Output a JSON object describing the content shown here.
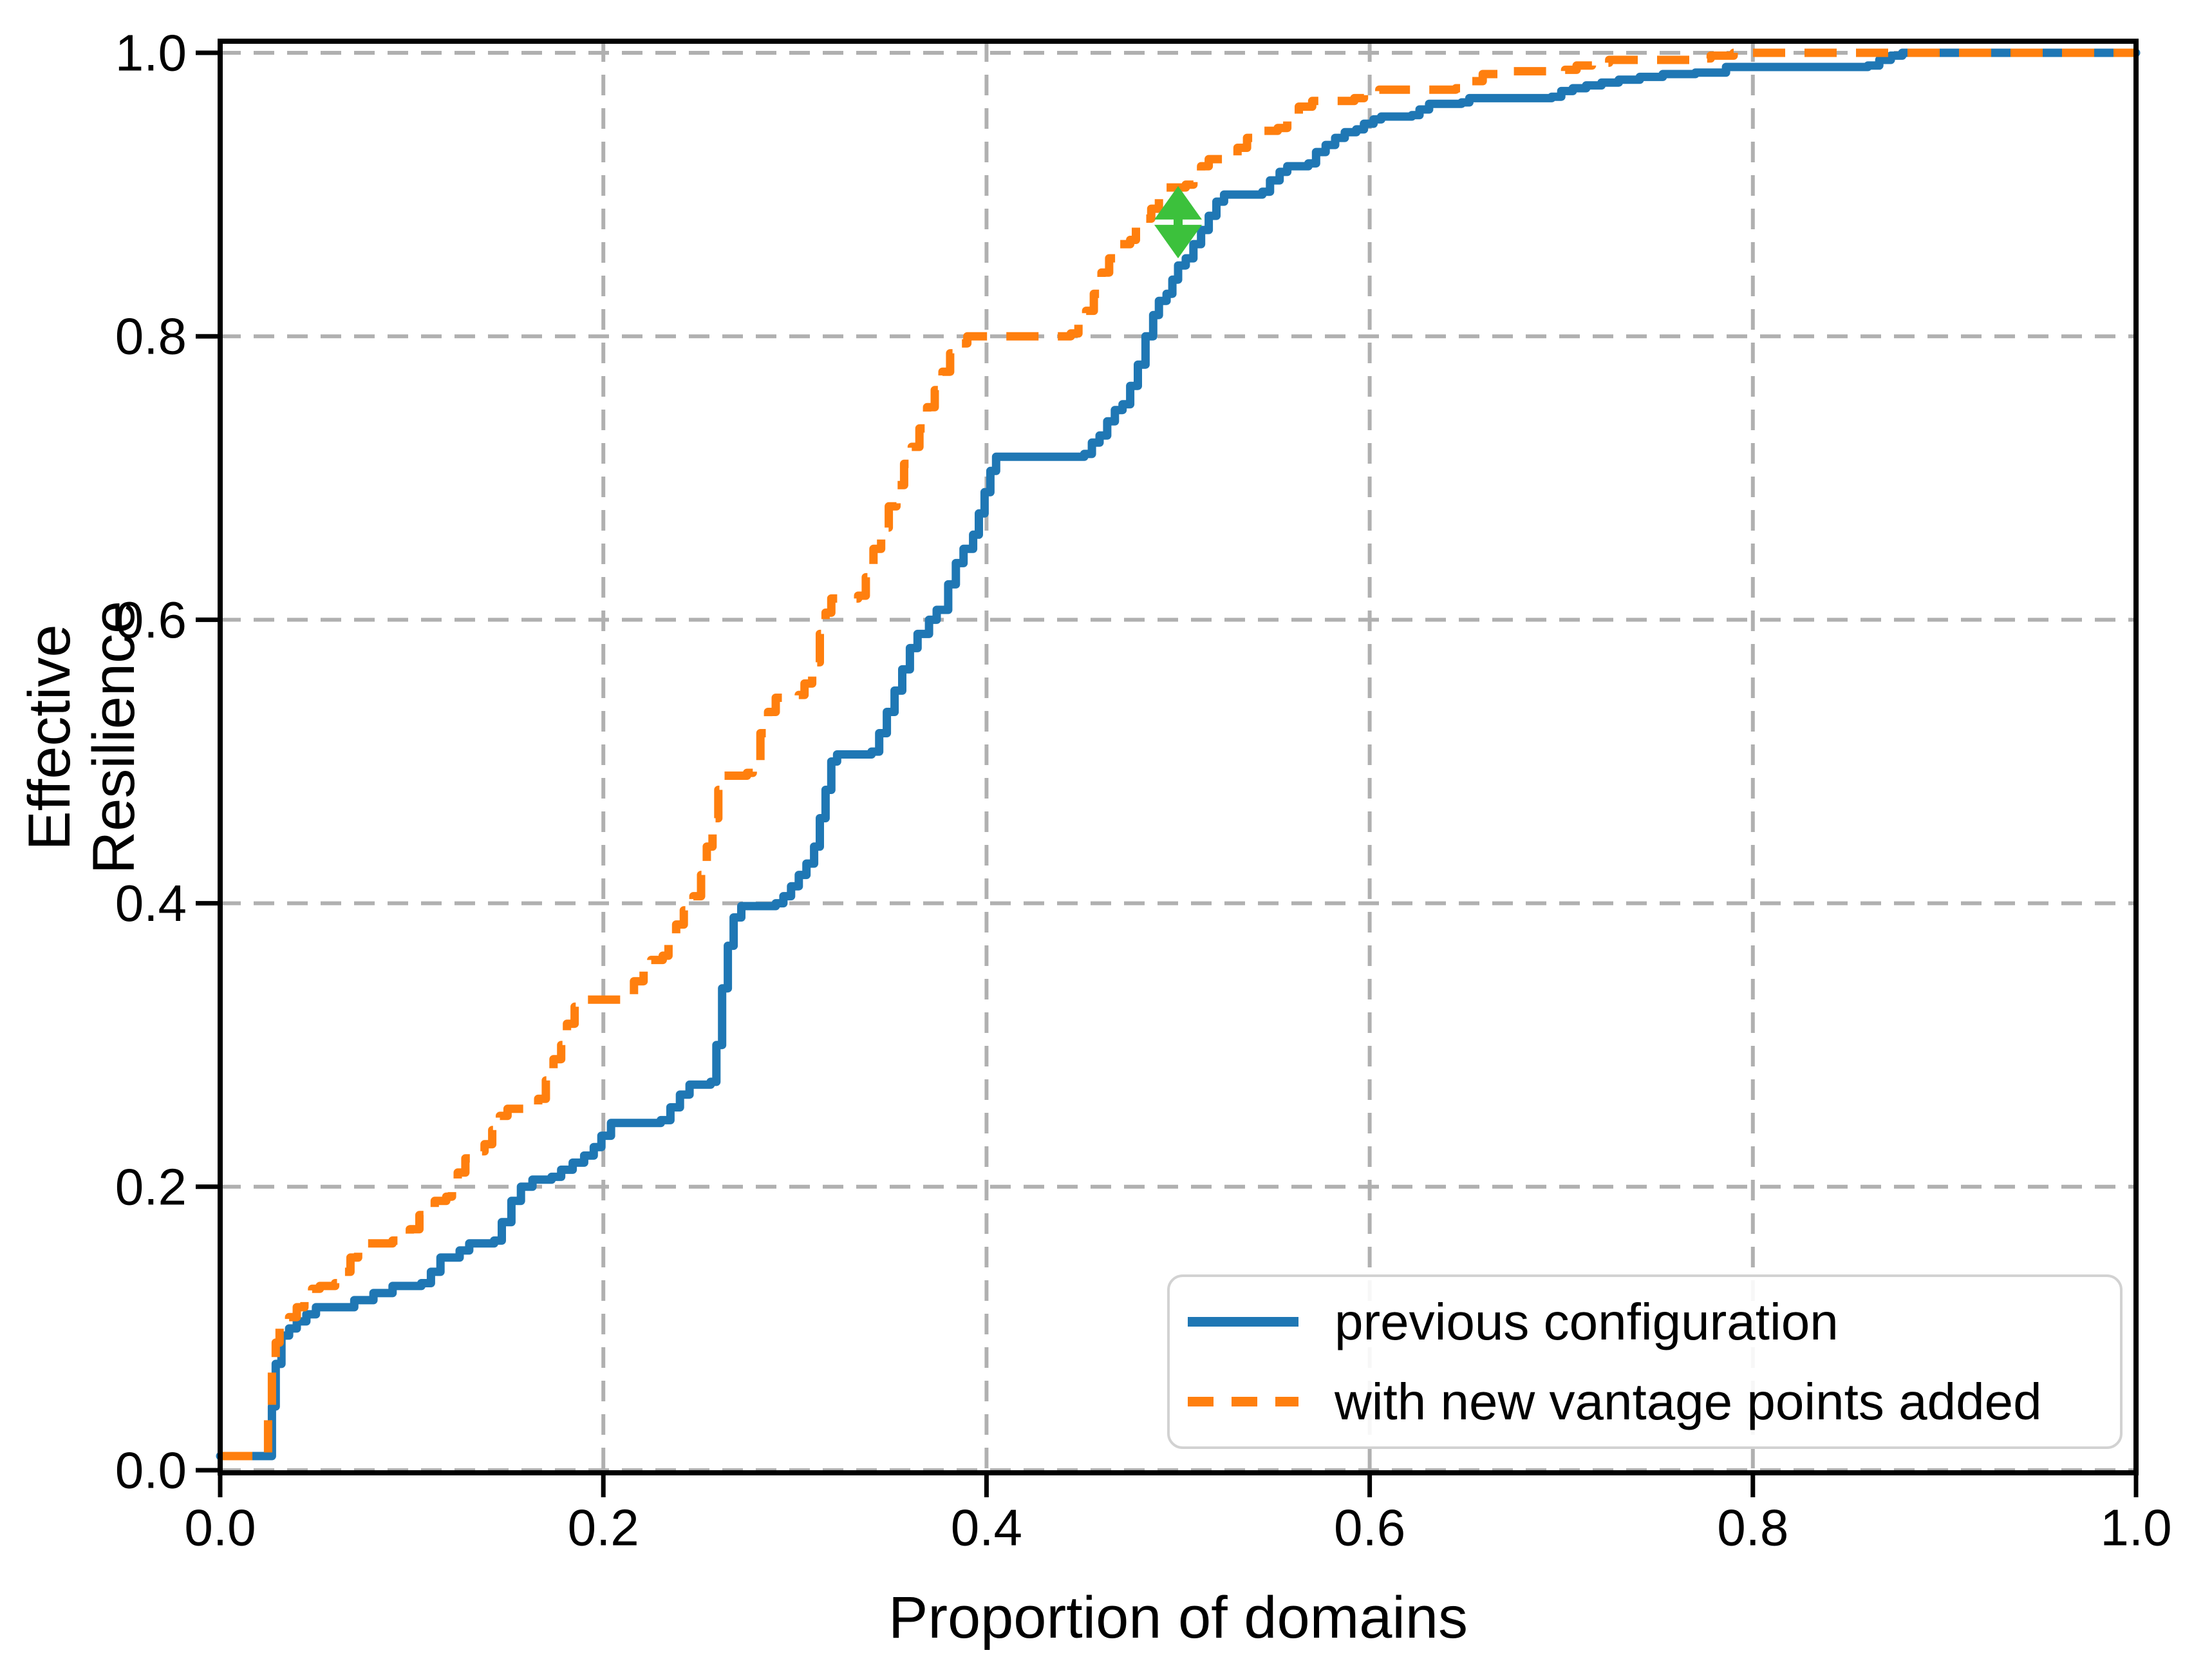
{
  "figure": {
    "background": "#ffffff"
  },
  "chart_data": {
    "type": "line",
    "subtype": "step-ecdf",
    "title": "",
    "xlabel": "Proportion of domains",
    "ylabel": "Effective Resilience",
    "xlim": [
      0.0,
      1.0
    ],
    "ylim": [
      0.0,
      1.0
    ],
    "grid": {
      "visible": true,
      "style": "dashed",
      "color": "#b0b0b0"
    },
    "x_ticks": {
      "values": [
        0.0,
        0.2,
        0.4,
        0.6,
        0.8,
        1.0
      ],
      "labels": [
        "0.0",
        "0.2",
        "0.4",
        "0.6",
        "0.8",
        "1.0"
      ]
    },
    "y_ticks": {
      "values": [
        0.0,
        0.2,
        0.4,
        0.6,
        0.8,
        1.0
      ],
      "labels": [
        "0.0",
        "0.2",
        "0.4",
        "0.6",
        "0.8",
        "1.0"
      ]
    },
    "legend": {
      "position": "lower right",
      "entries": [
        "previous configuration",
        "with new vantage points added"
      ]
    },
    "annotation": {
      "type": "double-headed-arrow",
      "color": "#3cc13c",
      "x": 0.5,
      "y_from": 0.855,
      "y_to": 0.906
    },
    "series": [
      {
        "name": "previous configuration",
        "color": "#1f77b4",
        "line_style": "solid",
        "points": [
          [
            0.0,
            0.01
          ],
          [
            0.024,
            0.01
          ],
          [
            0.027,
            0.045
          ],
          [
            0.029,
            0.075
          ],
          [
            0.032,
            0.095
          ],
          [
            0.036,
            0.1
          ],
          [
            0.04,
            0.105
          ],
          [
            0.045,
            0.11
          ],
          [
            0.05,
            0.115
          ],
          [
            0.066,
            0.115
          ],
          [
            0.07,
            0.12
          ],
          [
            0.08,
            0.125
          ],
          [
            0.09,
            0.13
          ],
          [
            0.105,
            0.132
          ],
          [
            0.11,
            0.14
          ],
          [
            0.115,
            0.15
          ],
          [
            0.125,
            0.155
          ],
          [
            0.13,
            0.16
          ],
          [
            0.143,
            0.162
          ],
          [
            0.147,
            0.175
          ],
          [
            0.152,
            0.19
          ],
          [
            0.157,
            0.2
          ],
          [
            0.163,
            0.205
          ],
          [
            0.173,
            0.207
          ],
          [
            0.178,
            0.212
          ],
          [
            0.184,
            0.217
          ],
          [
            0.19,
            0.222
          ],
          [
            0.195,
            0.228
          ],
          [
            0.199,
            0.236
          ],
          [
            0.204,
            0.245
          ],
          [
            0.23,
            0.247
          ],
          [
            0.235,
            0.256
          ],
          [
            0.24,
            0.265
          ],
          [
            0.245,
            0.272
          ],
          [
            0.256,
            0.274
          ],
          [
            0.259,
            0.3
          ],
          [
            0.262,
            0.34
          ],
          [
            0.265,
            0.37
          ],
          [
            0.268,
            0.39
          ],
          [
            0.272,
            0.398
          ],
          [
            0.29,
            0.4
          ],
          [
            0.294,
            0.405
          ],
          [
            0.298,
            0.412
          ],
          [
            0.302,
            0.42
          ],
          [
            0.306,
            0.428
          ],
          [
            0.31,
            0.44
          ],
          [
            0.313,
            0.46
          ],
          [
            0.316,
            0.48
          ],
          [
            0.319,
            0.5
          ],
          [
            0.322,
            0.505
          ],
          [
            0.34,
            0.507
          ],
          [
            0.344,
            0.52
          ],
          [
            0.348,
            0.535
          ],
          [
            0.352,
            0.55
          ],
          [
            0.356,
            0.565
          ],
          [
            0.36,
            0.58
          ],
          [
            0.364,
            0.59
          ],
          [
            0.37,
            0.6
          ],
          [
            0.374,
            0.607
          ],
          [
            0.38,
            0.625
          ],
          [
            0.384,
            0.64
          ],
          [
            0.388,
            0.65
          ],
          [
            0.393,
            0.66
          ],
          [
            0.396,
            0.675
          ],
          [
            0.399,
            0.69
          ],
          [
            0.402,
            0.705
          ],
          [
            0.405,
            0.715
          ],
          [
            0.451,
            0.717
          ],
          [
            0.455,
            0.725
          ],
          [
            0.459,
            0.73
          ],
          [
            0.463,
            0.74
          ],
          [
            0.467,
            0.748
          ],
          [
            0.471,
            0.752
          ],
          [
            0.475,
            0.765
          ],
          [
            0.479,
            0.78
          ],
          [
            0.483,
            0.8
          ],
          [
            0.487,
            0.815
          ],
          [
            0.49,
            0.825
          ],
          [
            0.494,
            0.83
          ],
          [
            0.497,
            0.84
          ],
          [
            0.5,
            0.85
          ],
          [
            0.504,
            0.855
          ],
          [
            0.508,
            0.865
          ],
          [
            0.512,
            0.875
          ],
          [
            0.516,
            0.885
          ],
          [
            0.52,
            0.895
          ],
          [
            0.524,
            0.9
          ],
          [
            0.544,
            0.902
          ],
          [
            0.548,
            0.91
          ],
          [
            0.553,
            0.916
          ],
          [
            0.557,
            0.92
          ],
          [
            0.568,
            0.922
          ],
          [
            0.572,
            0.93
          ],
          [
            0.577,
            0.935
          ],
          [
            0.582,
            0.94
          ],
          [
            0.587,
            0.944
          ],
          [
            0.593,
            0.946
          ],
          [
            0.597,
            0.95
          ],
          [
            0.602,
            0.953
          ],
          [
            0.606,
            0.955
          ],
          [
            0.622,
            0.956
          ],
          [
            0.626,
            0.96
          ],
          [
            0.631,
            0.964
          ],
          [
            0.648,
            0.965
          ],
          [
            0.652,
            0.968
          ],
          [
            0.695,
            0.969
          ],
          [
            0.7,
            0.973
          ],
          [
            0.706,
            0.975
          ],
          [
            0.713,
            0.977
          ],
          [
            0.721,
            0.979
          ],
          [
            0.73,
            0.981
          ],
          [
            0.741,
            0.983
          ],
          [
            0.753,
            0.985
          ],
          [
            0.77,
            0.986
          ],
          [
            0.786,
            0.99
          ],
          [
            0.86,
            0.991
          ],
          [
            0.866,
            0.995
          ],
          [
            0.872,
            0.998
          ],
          [
            0.878,
            1.0
          ],
          [
            1.0,
            1.0
          ]
        ]
      },
      {
        "name": "with new vantage points added",
        "color": "#ff7f0e",
        "line_style": "dashed",
        "points": [
          [
            0.0,
            0.01
          ],
          [
            0.023,
            0.01
          ],
          [
            0.025,
            0.04
          ],
          [
            0.027,
            0.07
          ],
          [
            0.029,
            0.09
          ],
          [
            0.031,
            0.1
          ],
          [
            0.036,
            0.108
          ],
          [
            0.04,
            0.115
          ],
          [
            0.044,
            0.12
          ],
          [
            0.048,
            0.128
          ],
          [
            0.052,
            0.13
          ],
          [
            0.06,
            0.132
          ],
          [
            0.064,
            0.14
          ],
          [
            0.068,
            0.15
          ],
          [
            0.072,
            0.155
          ],
          [
            0.076,
            0.16
          ],
          [
            0.09,
            0.162
          ],
          [
            0.094,
            0.166
          ],
          [
            0.099,
            0.17
          ],
          [
            0.104,
            0.18
          ],
          [
            0.108,
            0.185
          ],
          [
            0.112,
            0.19
          ],
          [
            0.118,
            0.193
          ],
          [
            0.121,
            0.2
          ],
          [
            0.124,
            0.21
          ],
          [
            0.128,
            0.22
          ],
          [
            0.133,
            0.225
          ],
          [
            0.138,
            0.23
          ],
          [
            0.142,
            0.24
          ],
          [
            0.146,
            0.25
          ],
          [
            0.15,
            0.255
          ],
          [
            0.162,
            0.257
          ],
          [
            0.166,
            0.262
          ],
          [
            0.17,
            0.275
          ],
          [
            0.174,
            0.29
          ],
          [
            0.178,
            0.3
          ],
          [
            0.181,
            0.315
          ],
          [
            0.185,
            0.327
          ],
          [
            0.19,
            0.332
          ],
          [
            0.212,
            0.334
          ],
          [
            0.216,
            0.345
          ],
          [
            0.221,
            0.355
          ],
          [
            0.225,
            0.36
          ],
          [
            0.231,
            0.363
          ],
          [
            0.234,
            0.375
          ],
          [
            0.238,
            0.385
          ],
          [
            0.242,
            0.395
          ],
          [
            0.247,
            0.405
          ],
          [
            0.251,
            0.42
          ],
          [
            0.254,
            0.44
          ],
          [
            0.257,
            0.46
          ],
          [
            0.26,
            0.48
          ],
          [
            0.263,
            0.49
          ],
          [
            0.275,
            0.492
          ],
          [
            0.278,
            0.5
          ],
          [
            0.282,
            0.52
          ],
          [
            0.286,
            0.535
          ],
          [
            0.29,
            0.545
          ],
          [
            0.302,
            0.547
          ],
          [
            0.305,
            0.555
          ],
          [
            0.309,
            0.57
          ],
          [
            0.313,
            0.59
          ],
          [
            0.316,
            0.605
          ],
          [
            0.319,
            0.615
          ],
          [
            0.333,
            0.617
          ],
          [
            0.337,
            0.63
          ],
          [
            0.341,
            0.65
          ],
          [
            0.345,
            0.665
          ],
          [
            0.349,
            0.68
          ],
          [
            0.353,
            0.695
          ],
          [
            0.357,
            0.71
          ],
          [
            0.361,
            0.722
          ],
          [
            0.365,
            0.735
          ],
          [
            0.369,
            0.75
          ],
          [
            0.373,
            0.762
          ],
          [
            0.377,
            0.775
          ],
          [
            0.381,
            0.788
          ],
          [
            0.385,
            0.795
          ],
          [
            0.39,
            0.8
          ],
          [
            0.444,
            0.802
          ],
          [
            0.448,
            0.81
          ],
          [
            0.452,
            0.818
          ],
          [
            0.456,
            0.83
          ],
          [
            0.46,
            0.845
          ],
          [
            0.464,
            0.855
          ],
          [
            0.468,
            0.865
          ],
          [
            0.475,
            0.868
          ],
          [
            0.478,
            0.877
          ],
          [
            0.482,
            0.883
          ],
          [
            0.486,
            0.89
          ],
          [
            0.49,
            0.898
          ],
          [
            0.494,
            0.905
          ],
          [
            0.504,
            0.907
          ],
          [
            0.508,
            0.913
          ],
          [
            0.512,
            0.92
          ],
          [
            0.516,
            0.925
          ],
          [
            0.527,
            0.927
          ],
          [
            0.531,
            0.933
          ],
          [
            0.536,
            0.94
          ],
          [
            0.541,
            0.945
          ],
          [
            0.552,
            0.947
          ],
          [
            0.557,
            0.955
          ],
          [
            0.563,
            0.962
          ],
          [
            0.57,
            0.966
          ],
          [
            0.592,
            0.968
          ],
          [
            0.597,
            0.972
          ],
          [
            0.605,
            0.974
          ],
          [
            0.645,
            0.975
          ],
          [
            0.651,
            0.98
          ],
          [
            0.659,
            0.985
          ],
          [
            0.667,
            0.987
          ],
          [
            0.702,
            0.988
          ],
          [
            0.708,
            0.991
          ],
          [
            0.716,
            0.993
          ],
          [
            0.725,
            0.995
          ],
          [
            0.77,
            0.996
          ],
          [
            0.778,
            0.998
          ],
          [
            0.79,
            1.0
          ],
          [
            1.0,
            1.0
          ]
        ]
      }
    ]
  }
}
